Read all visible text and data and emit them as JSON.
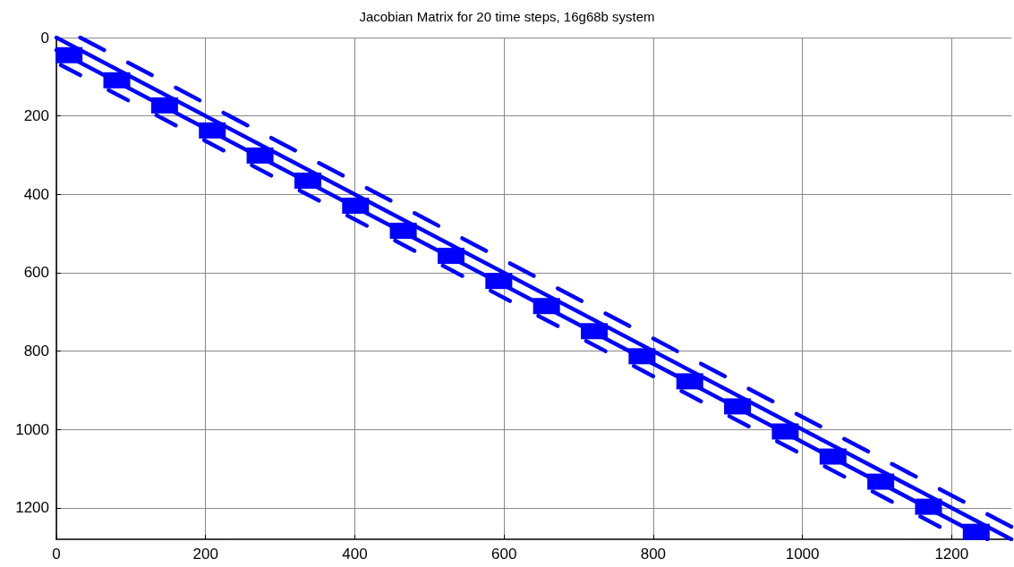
{
  "chart_data": {
    "type": "line",
    "title": "Jacobian Matrix for 20 time steps, 16g68b system",
    "xlim": [
      0,
      1280
    ],
    "xticks": [
      0,
      200,
      400,
      600,
      800,
      1000,
      1200
    ],
    "ylim": [
      1280,
      0
    ],
    "yticks": [
      0,
      200,
      400,
      600,
      800,
      1000,
      1200
    ],
    "grid": true,
    "marker": "none",
    "line_style": "solid",
    "series": [
      {
        "color": "#0000ff",
        "x": [
          0,
          1280
        ],
        "values": [
          0,
          1280
        ]
      },
      {
        "color": "#0000ff",
        "x": [
          0,
          1248
        ],
        "values": [
          32,
          1280
        ]
      },
      {
        "color": "#0000ff",
        "x": [
          32,
          64
        ],
        "values": [
          0,
          32
        ]
      },
      {
        "color": "#0000ff",
        "x": [
          96,
          128
        ],
        "values": [
          64,
          96
        ]
      },
      {
        "color": "#0000ff",
        "x": [
          160,
          192
        ],
        "values": [
          128,
          160
        ]
      },
      {
        "color": "#0000ff",
        "x": [
          224,
          256
        ],
        "values": [
          192,
          224
        ]
      },
      {
        "color": "#0000ff",
        "x": [
          288,
          320
        ],
        "values": [
          256,
          288
        ]
      },
      {
        "color": "#0000ff",
        "x": [
          352,
          384
        ],
        "values": [
          320,
          352
        ]
      },
      {
        "color": "#0000ff",
        "x": [
          416,
          448
        ],
        "values": [
          384,
          416
        ]
      },
      {
        "color": "#0000ff",
        "x": [
          480,
          512
        ],
        "values": [
          448,
          480
        ]
      },
      {
        "color": "#0000ff",
        "x": [
          544,
          576
        ],
        "values": [
          512,
          544
        ]
      },
      {
        "color": "#0000ff",
        "x": [
          608,
          640
        ],
        "values": [
          576,
          608
        ]
      },
      {
        "color": "#0000ff",
        "x": [
          672,
          704
        ],
        "values": [
          640,
          672
        ]
      },
      {
        "color": "#0000ff",
        "x": [
          736,
          768
        ],
        "values": [
          704,
          736
        ]
      },
      {
        "color": "#0000ff",
        "x": [
          800,
          832
        ],
        "values": [
          768,
          800
        ]
      },
      {
        "color": "#0000ff",
        "x": [
          864,
          896
        ],
        "values": [
          832,
          864
        ]
      },
      {
        "color": "#0000ff",
        "x": [
          928,
          960
        ],
        "values": [
          896,
          928
        ]
      },
      {
        "color": "#0000ff",
        "x": [
          992,
          1024
        ],
        "values": [
          960,
          992
        ]
      },
      {
        "color": "#0000ff",
        "x": [
          1056,
          1088
        ],
        "values": [
          1024,
          1056
        ]
      },
      {
        "color": "#0000ff",
        "x": [
          1120,
          1152
        ],
        "values": [
          1088,
          1120
        ]
      },
      {
        "color": "#0000ff",
        "x": [
          1184,
          1216
        ],
        "values": [
          1152,
          1184
        ]
      },
      {
        "color": "#0000ff",
        "x": [
          1248,
          1280
        ],
        "values": [
          1216,
          1248
        ]
      },
      {
        "color": "#0000ff",
        "x": [
          6,
          32
        ],
        "values": [
          70,
          96
        ]
      },
      {
        "color": "#0000ff",
        "x": [
          70,
          96
        ],
        "values": [
          134,
          160
        ]
      },
      {
        "color": "#0000ff",
        "x": [
          134,
          160
        ],
        "values": [
          198,
          224
        ]
      },
      {
        "color": "#0000ff",
        "x": [
          198,
          224
        ],
        "values": [
          262,
          288
        ]
      },
      {
        "color": "#0000ff",
        "x": [
          262,
          288
        ],
        "values": [
          326,
          352
        ]
      },
      {
        "color": "#0000ff",
        "x": [
          326,
          352
        ],
        "values": [
          390,
          416
        ]
      },
      {
        "color": "#0000ff",
        "x": [
          390,
          416
        ],
        "values": [
          454,
          480
        ]
      },
      {
        "color": "#0000ff",
        "x": [
          454,
          480
        ],
        "values": [
          518,
          544
        ]
      },
      {
        "color": "#0000ff",
        "x": [
          518,
          544
        ],
        "values": [
          582,
          608
        ]
      },
      {
        "color": "#0000ff",
        "x": [
          582,
          608
        ],
        "values": [
          646,
          672
        ]
      },
      {
        "color": "#0000ff",
        "x": [
          646,
          672
        ],
        "values": [
          710,
          736
        ]
      },
      {
        "color": "#0000ff",
        "x": [
          710,
          736
        ],
        "values": [
          774,
          800
        ]
      },
      {
        "color": "#0000ff",
        "x": [
          774,
          800
        ],
        "values": [
          838,
          864
        ]
      },
      {
        "color": "#0000ff",
        "x": [
          838,
          864
        ],
        "values": [
          902,
          928
        ]
      },
      {
        "color": "#0000ff",
        "x": [
          902,
          928
        ],
        "values": [
          966,
          992
        ]
      },
      {
        "color": "#0000ff",
        "x": [
          966,
          992
        ],
        "values": [
          1030,
          1056
        ]
      },
      {
        "color": "#0000ff",
        "x": [
          1030,
          1056
        ],
        "values": [
          1094,
          1120
        ]
      },
      {
        "color": "#0000ff",
        "x": [
          1094,
          1120
        ],
        "values": [
          1158,
          1184
        ]
      },
      {
        "color": "#0000ff",
        "x": [
          1158,
          1184
        ],
        "values": [
          1222,
          1248
        ]
      },
      {
        "type": "scatter",
        "marker": "square",
        "color": "#0000ff",
        "x": [
          17,
          81,
          145,
          209,
          273,
          337,
          401,
          465,
          529,
          593,
          657,
          721,
          785,
          849,
          913,
          977,
          1041,
          1105,
          1169,
          1233
        ],
        "values": [
          45,
          109,
          173,
          237,
          301,
          365,
          429,
          493,
          557,
          621,
          685,
          749,
          813,
          877,
          941,
          1005,
          1069,
          1133,
          1197,
          1261
        ]
      }
    ]
  }
}
